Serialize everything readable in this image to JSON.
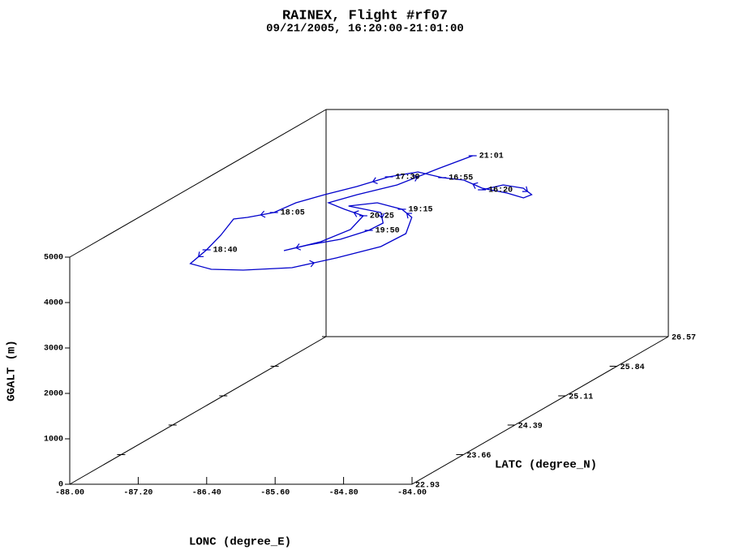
{
  "chart_data": {
    "type": "line3d",
    "title": "RAINEX, Flight #rf07",
    "subtitle": "09/21/2005, 16:20:00-21:01:00",
    "xlabel": "LONC (degree_E)",
    "ylabel": "LATC (degree_N)",
    "zlabel": "GGALT (m)",
    "color": "#0000cc",
    "xlim": [
      -88,
      -84
    ],
    "ylim": [
      22.93,
      26.57
    ],
    "zlim": [
      0,
      5000
    ],
    "xticks": [
      {
        "value": -88,
        "label": "-88.00"
      },
      {
        "value": -87.2,
        "label": "-87.20"
      },
      {
        "value": -86.4,
        "label": "-86.40"
      },
      {
        "value": -85.6,
        "label": "-85.60"
      },
      {
        "value": -84.8,
        "label": "-84.80"
      },
      {
        "value": -84,
        "label": "-84.00"
      }
    ],
    "yticks": [
      22.93,
      23.66,
      24.39,
      25.11,
      25.84,
      26.57
    ],
    "zticks": [
      0,
      1000,
      2000,
      3000,
      4000,
      5000
    ],
    "x": [
      -85.01,
      -84.86,
      -84.56,
      -84.33,
      -84.36,
      -84.65,
      -85.04,
      -85.42,
      -85.72,
      -86.12,
      -86.36,
      -86.54,
      -86.75,
      -86.92,
      -86.98,
      -87.19,
      -87.32,
      -87.14,
      -87.01,
      -86.92,
      -86.56,
      -86.17,
      -85.65,
      -85.33,
      -85.04,
      -85.01,
      -85.27,
      -85.55,
      -85.97,
      -86.24,
      -85.73,
      -85.49,
      -85.51,
      -85.66,
      -85.92,
      -86.09,
      -85.84,
      -85.74,
      -85.87,
      -86.22,
      -86.54,
      -86.37,
      -86.1,
      -85.95,
      -85.81
    ],
    "y": [
      25.15,
      25.27,
      25.19,
      25.03,
      24.95,
      25.07,
      25.19,
      25.39,
      25.45,
      25.59,
      25.47,
      25.23,
      25.03,
      24.83,
      24.59,
      24.47,
      24.43,
      24.03,
      23.67,
      23.33,
      23.19,
      23.17,
      23.23,
      23.47,
      23.75,
      24.07,
      24.47,
      24.67,
      24.83,
      24.75,
      24.59,
      24.33,
      24.15,
      23.93,
      23.79,
      23.65,
      23.87,
      24.17,
      24.51,
      24.67,
      24.83,
      25.03,
      25.27,
      25.67,
      25.99
    ],
    "z": [
      4500,
      4500,
      4500,
      4500,
      4500,
      4500,
      4500,
      4500,
      4500,
      4500,
      4500,
      4500,
      4500,
      4500,
      4500,
      4500,
      4500,
      4500,
      4500,
      4500,
      4500,
      4500,
      4500,
      4500,
      4500,
      4500,
      4500,
      4500,
      4500,
      4500,
      4500,
      4500,
      4500,
      4500,
      4500,
      4500,
      4500,
      4500,
      4500,
      4500,
      4500,
      4500,
      4500,
      4500,
      4500
    ],
    "labels": [
      "16:20",
      null,
      null,
      null,
      null,
      null,
      null,
      null,
      "16:55",
      null,
      "17:30",
      null,
      null,
      null,
      "18:05",
      null,
      null,
      null,
      "18:40",
      null,
      null,
      null,
      null,
      null,
      null,
      null,
      null,
      "19:15",
      null,
      null,
      null,
      null,
      "19:50",
      null,
      null,
      null,
      null,
      null,
      "20:25",
      null,
      null,
      null,
      null,
      null,
      "21:01"
    ]
  }
}
